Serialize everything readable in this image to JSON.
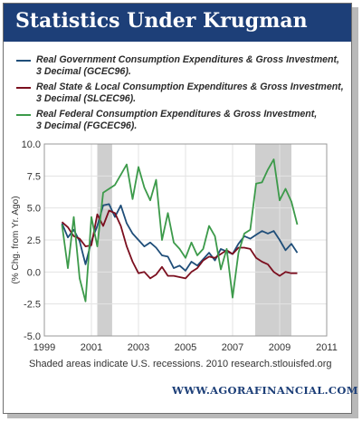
{
  "header": {
    "title": "Statistics Under Krugman"
  },
  "legend": {
    "items": [
      {
        "label_line1": "Real Government Consumption Expenditures & Gross Investment,",
        "label_line2": "3 Decimal (GCEC96).",
        "color": "#1f4e79"
      },
      {
        "label_line1": "Real State & Local Consumption Expenditures & Gross Investment,",
        "label_line2": "3 Decimal (SLCEC96).",
        "color": "#7b0f1f"
      },
      {
        "label_line1": "Real Federal Consumption Expenditures & Gross Investment,",
        "label_line2": "3 Decimal (FGCEC96).",
        "color": "#3c9a4a"
      }
    ]
  },
  "footnote": "Shaded areas indicate U.S. recessions. 2010 research.stlouisfed.org",
  "footer": {
    "brand": "WWW.AGORAFINANCIAL.COM"
  },
  "chart_data": {
    "type": "line",
    "ylabel": "(% Chg. from Yr. Ago)",
    "xlim": [
      1999,
      2011
    ],
    "ylim": [
      -5,
      10
    ],
    "x_ticks": [
      "1999",
      "2001",
      "2003",
      "2005",
      "2007",
      "2009",
      "2011"
    ],
    "y_ticks": [
      "10.0",
      "7.5",
      "5.0",
      "2.5",
      "0.0",
      "-2.5",
      "-5.0"
    ],
    "recessions": [
      [
        2001.25,
        2001.88
      ],
      [
        2007.96,
        2009.5
      ]
    ],
    "grid": true,
    "x": [
      1999.75,
      2000.0,
      2000.25,
      2000.5,
      2000.75,
      2001.0,
      2001.25,
      2001.5,
      2001.75,
      2002.0,
      2002.25,
      2002.5,
      2002.75,
      2003.0,
      2003.25,
      2003.5,
      2003.75,
      2004.0,
      2004.25,
      2004.5,
      2004.75,
      2005.0,
      2005.25,
      2005.5,
      2005.75,
      2006.0,
      2006.25,
      2006.5,
      2006.75,
      2007.0,
      2007.25,
      2007.5,
      2007.75,
      2008.0,
      2008.25,
      2008.5,
      2008.75,
      2009.0,
      2009.25,
      2009.5,
      2009.75
    ],
    "series": [
      {
        "name": "Real Government Consumption Expenditures & Gross Investment, 3 Decimal (GCEC96).",
        "color": "#1f4e79",
        "values": [
          3.8,
          2.7,
          3.3,
          2.4,
          0.6,
          2.4,
          3.6,
          5.2,
          5.3,
          4.3,
          5.2,
          3.8,
          3.0,
          2.5,
          2.0,
          2.3,
          1.9,
          1.3,
          1.2,
          0.3,
          0.5,
          0.1,
          0.8,
          0.5,
          1.0,
          1.5,
          0.9,
          1.8,
          1.6,
          1.4,
          2.2,
          2.8,
          2.6,
          2.9,
          3.2,
          3.0,
          3.2,
          2.5,
          1.7,
          2.2,
          1.5
        ]
      },
      {
        "name": "Real State & Local Consumption Expenditures & Gross Investment, 3 Decimal (SLCEC96).",
        "color": "#7b0f1f",
        "values": [
          3.9,
          3.5,
          2.8,
          2.6,
          2.0,
          2.1,
          4.5,
          3.6,
          4.8,
          4.6,
          3.6,
          2.0,
          0.8,
          -0.1,
          0.0,
          -0.5,
          -0.2,
          0.4,
          -0.3,
          -0.3,
          -0.4,
          -0.5,
          0.0,
          0.3,
          0.9,
          1.2,
          1.1,
          1.4,
          1.7,
          1.4,
          1.9,
          1.9,
          1.8,
          1.1,
          0.8,
          0.6,
          0.0,
          -0.3,
          0.0,
          -0.1,
          -0.1
        ]
      },
      {
        "name": "Real Federal Consumption Expenditures & Gross Investment, 3 Decimal (FGCEC96).",
        "color": "#3c9a4a",
        "values": [
          3.7,
          0.3,
          4.3,
          -0.5,
          -2.3,
          4.3,
          2.0,
          6.2,
          6.5,
          6.8,
          7.6,
          8.4,
          5.7,
          8.2,
          6.6,
          5.6,
          7.2,
          2.5,
          4.6,
          2.3,
          1.8,
          1.1,
          2.3,
          1.3,
          1.8,
          3.6,
          2.8,
          0.2,
          1.8,
          -2.0,
          1.5,
          3.0,
          3.3,
          6.9,
          7.0,
          8.0,
          8.8,
          5.6,
          6.5,
          5.5,
          3.7
        ]
      }
    ]
  }
}
